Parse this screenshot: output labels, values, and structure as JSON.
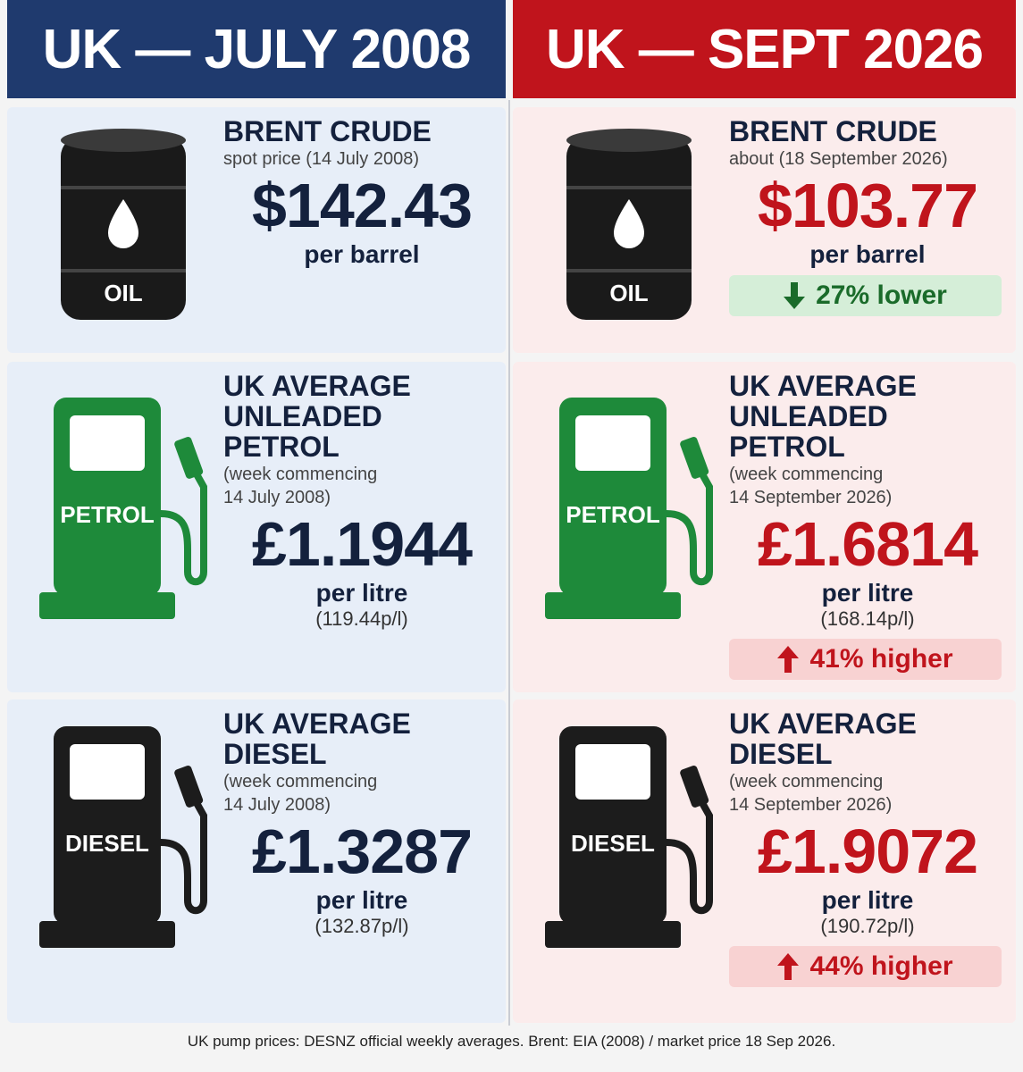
{
  "columns": [
    {
      "header": "UK — JULY 2008",
      "header_color": "#1f3a6e",
      "card_color": "#e7eef8",
      "price_color": "#14213d",
      "cards": [
        {
          "icon": "barrel",
          "icon_color": "#1a1a1a",
          "icon_label": "OIL",
          "title_lines": [
            "BRENT CRUDE"
          ],
          "subtitle_lines": [
            "spot price (14 July 2008)"
          ],
          "price": "$142.43",
          "unit": "per barrel"
        },
        {
          "icon": "pump",
          "icon_color": "#1e8a3a",
          "icon_label": "PETROL",
          "title_lines": [
            "UK AVERAGE",
            "UNLEADED PETROL"
          ],
          "subtitle_lines": [
            "(week commencing",
            "14 July 2008)"
          ],
          "price": "£1.1944",
          "unit": "per litre",
          "pence": "(119.44p/l)"
        },
        {
          "icon": "pump",
          "icon_color": "#1c1c1c",
          "icon_label": "DIESEL",
          "title_lines": [
            "UK AVERAGE",
            "DIESEL"
          ],
          "subtitle_lines": [
            "(week commencing",
            "14 July 2008)"
          ],
          "price": "£1.3287",
          "unit": "per litre",
          "pence": "(132.87p/l)"
        }
      ]
    },
    {
      "header": "UK — SEPT 2026",
      "header_color": "#c0141c",
      "card_color": "#fbecec",
      "price_color": "#c0141c",
      "cards": [
        {
          "icon": "barrel",
          "icon_color": "#1a1a1a",
          "icon_label": "OIL",
          "title_lines": [
            "BRENT CRUDE"
          ],
          "subtitle_lines": [
            "about (18 September 2026)"
          ],
          "price": "$103.77",
          "unit": "per barrel",
          "change": {
            "text": "27% lower",
            "direction": "down"
          }
        },
        {
          "icon": "pump",
          "icon_color": "#1e8a3a",
          "icon_label": "PETROL",
          "title_lines": [
            "UK AVERAGE",
            "UNLEADED PETROL"
          ],
          "subtitle_lines": [
            "(week commencing",
            "14 September 2026)"
          ],
          "price": "£1.6814",
          "unit": "per litre",
          "pence": "(168.14p/l)",
          "change": {
            "text": "41% higher",
            "direction": "up"
          }
        },
        {
          "icon": "pump",
          "icon_color": "#1c1c1c",
          "icon_label": "DIESEL",
          "title_lines": [
            "UK AVERAGE",
            "DIESEL"
          ],
          "subtitle_lines": [
            "(week commencing",
            "14 September 2026)"
          ],
          "price": "£1.9072",
          "unit": "per litre",
          "pence": "(190.72p/l)",
          "change": {
            "text": "44% higher",
            "direction": "up"
          }
        }
      ]
    }
  ],
  "footer": "UK pump prices: DESNZ official weekly averages. Brent: EIA (2008) / market price 18 Sep 2026."
}
